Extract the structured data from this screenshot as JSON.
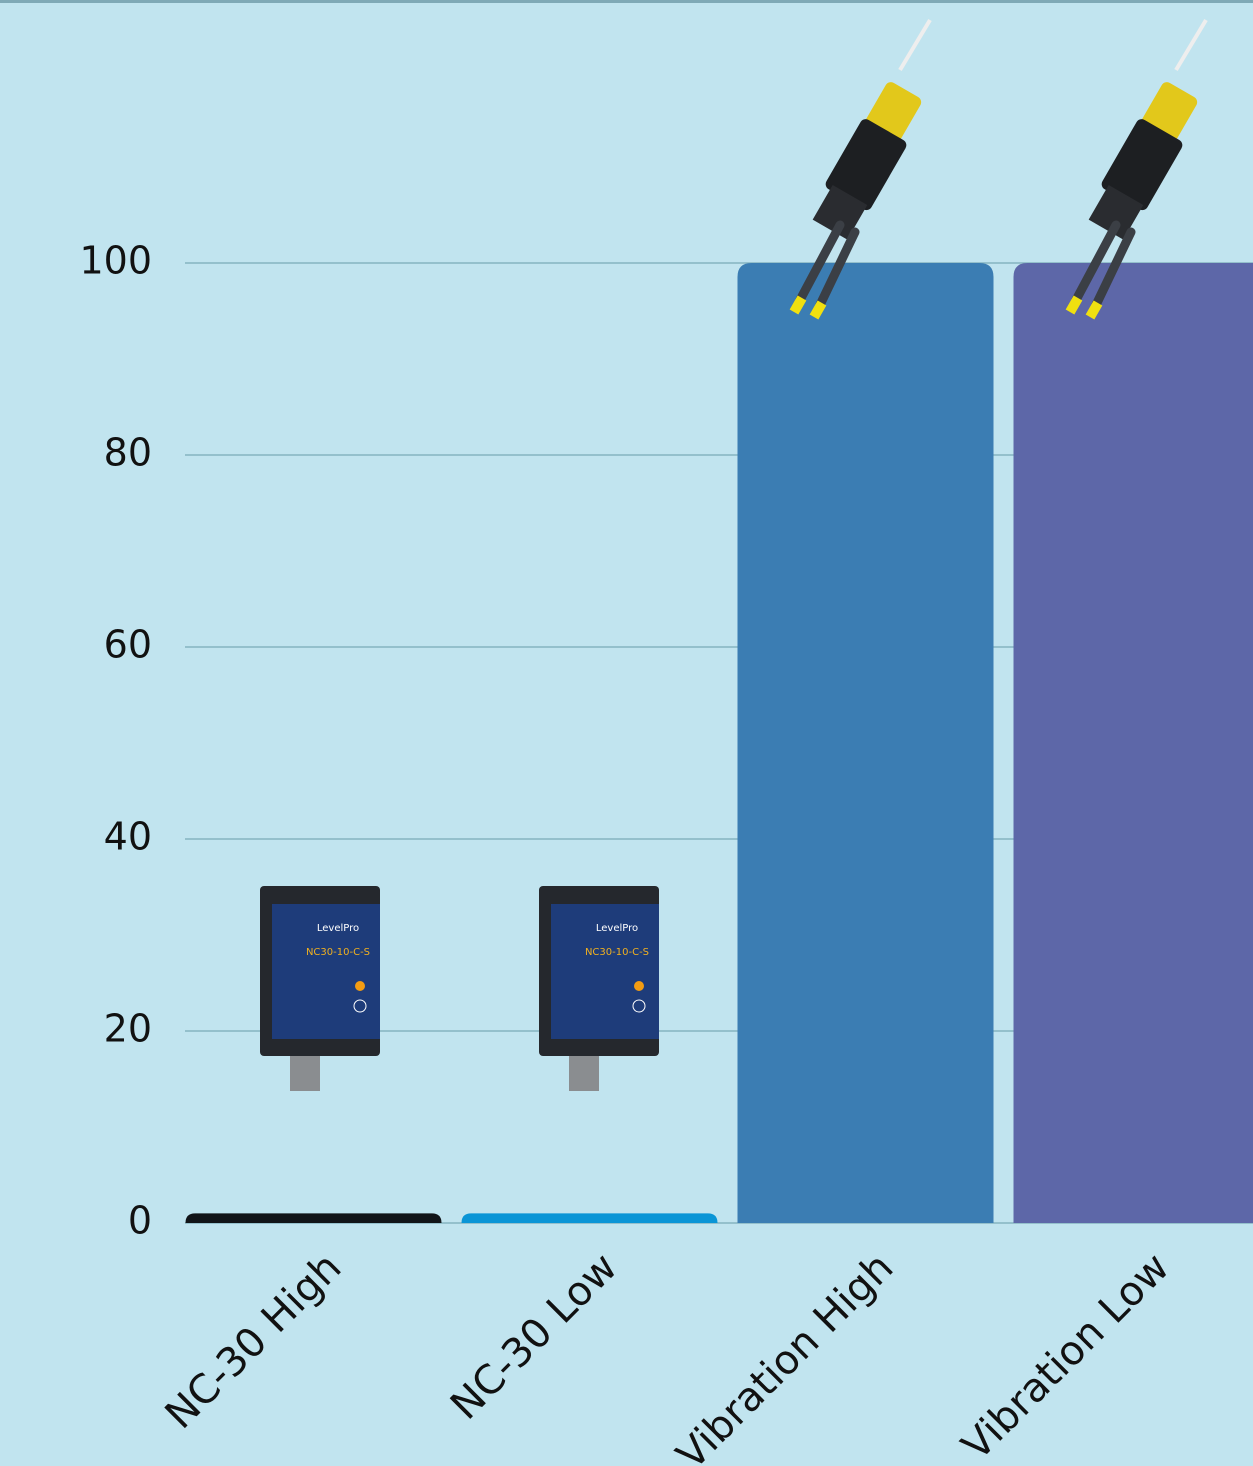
{
  "chart_data": {
    "type": "bar",
    "categories": [
      "NC-30 High",
      "NC-30 Low",
      "Vibration High",
      "Vibration Low"
    ],
    "values": [
      1,
      1,
      100,
      100
    ],
    "colors": [
      "#111418",
      "#0a95d6",
      "#3b7db3",
      "#5d67a8"
    ],
    "ylim": [
      0,
      100
    ],
    "yticks": [
      0,
      20,
      40,
      60,
      80,
      100
    ],
    "grid": true
  }
}
